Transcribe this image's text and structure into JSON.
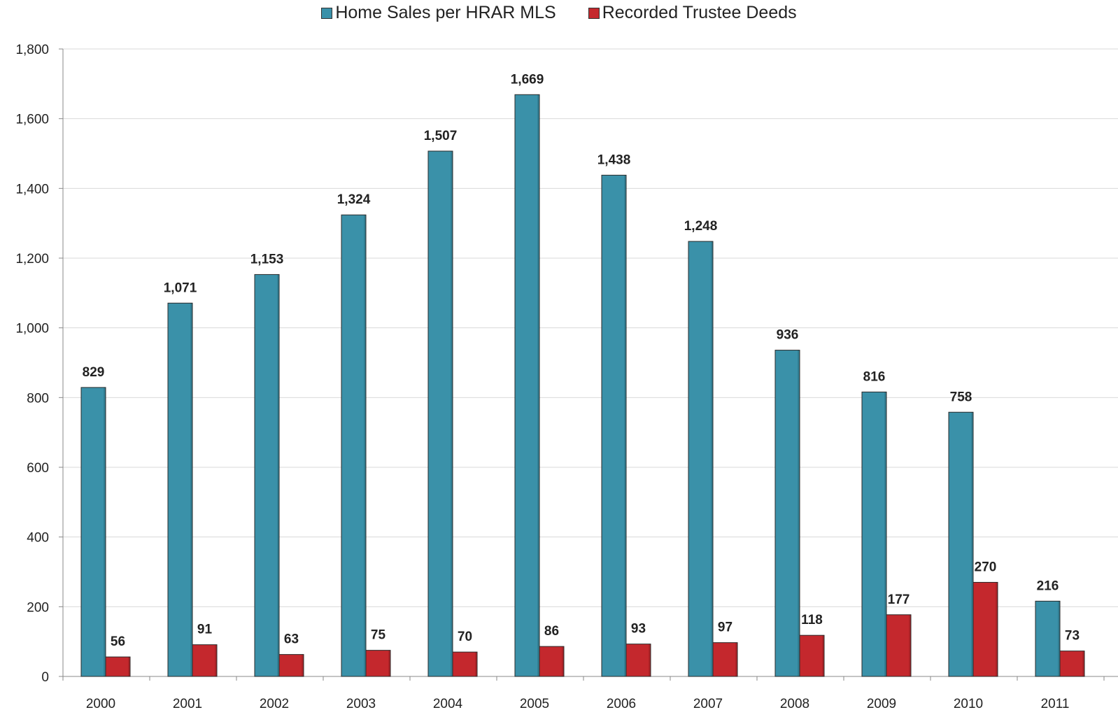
{
  "chart_data": {
    "type": "bar",
    "categories": [
      "2000",
      "2001",
      "2002",
      "2003",
      "2004",
      "2005",
      "2006",
      "2007",
      "2008",
      "2009",
      "2010",
      "2011"
    ],
    "series": [
      {
        "name": "Home Sales per HRAR MLS",
        "color": "#3a91a9",
        "values": [
          829,
          1071,
          1153,
          1324,
          1507,
          1669,
          1438,
          1248,
          936,
          816,
          758,
          216
        ],
        "labels": [
          "829",
          "1,071",
          "1,153",
          "1,324",
          "1,507",
          "1,669",
          "1,438",
          "1,248",
          "936",
          "816",
          "758",
          "216"
        ]
      },
      {
        "name": "Recorded Trustee Deeds",
        "color": "#c4282d",
        "values": [
          56,
          91,
          63,
          75,
          70,
          86,
          93,
          97,
          118,
          177,
          270,
          73
        ],
        "labels": [
          "56",
          "91",
          "63",
          "75",
          "70",
          "86",
          "93",
          "97",
          "118",
          "177",
          "270",
          "73"
        ]
      }
    ],
    "ylim": [
      0,
      1800
    ],
    "yticks": [
      0,
      200,
      400,
      600,
      800,
      1000,
      1200,
      1400,
      1600,
      1800
    ],
    "ytick_labels": [
      "0",
      "200",
      "400",
      "600",
      "800",
      "1,000",
      "1,200",
      "1,400",
      "1,600",
      "1,800"
    ],
    "grid": true,
    "legend_position": "top-center",
    "title": "",
    "xlabel": "",
    "ylabel": ""
  }
}
